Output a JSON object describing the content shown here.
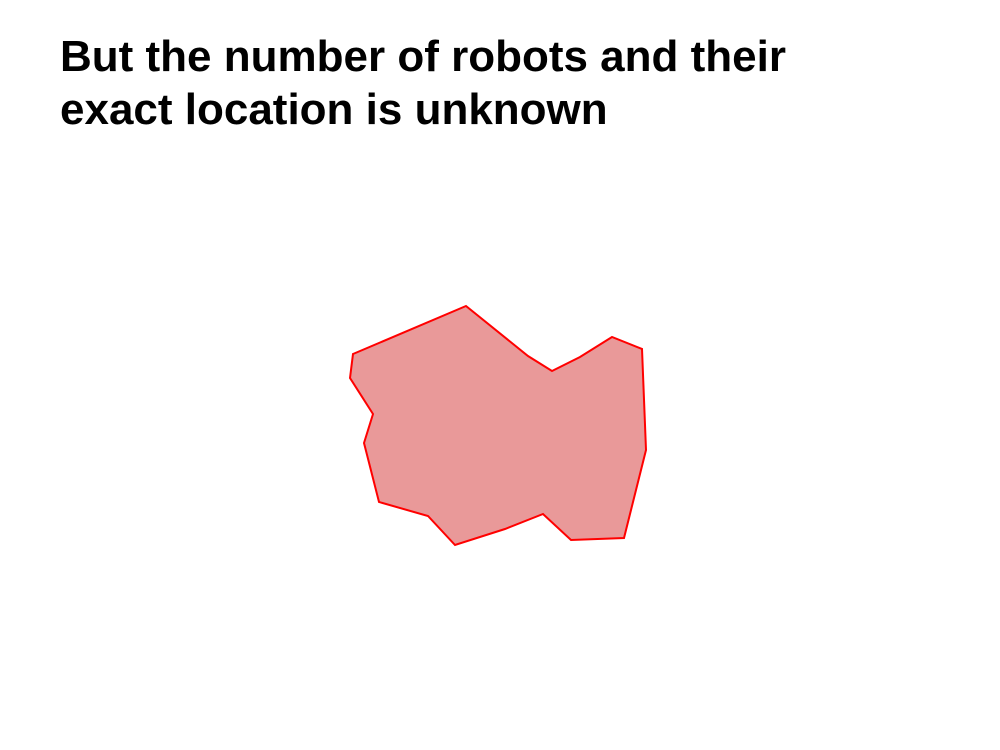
{
  "slide": {
    "title_line1": "But the number of robots and their",
    "title_line2": "exact location is unknown"
  },
  "region": {
    "fill_color": "#e99999",
    "stroke_color": "#ff0000"
  }
}
